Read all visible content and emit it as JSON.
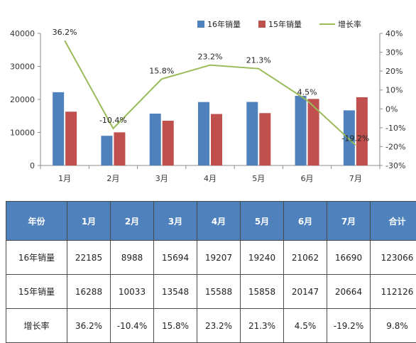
{
  "chart_data": {
    "type": "bar",
    "categories": [
      "1月",
      "2月",
      "3月",
      "4月",
      "5月",
      "6月",
      "7月"
    ],
    "series": [
      {
        "name": "16年销量",
        "type": "bar",
        "axis": "left",
        "color": "#4f81bd",
        "values": [
          22185,
          8988,
          15694,
          19207,
          19240,
          21062,
          16690
        ]
      },
      {
        "name": "15年销量",
        "type": "bar",
        "axis": "left",
        "color": "#c0504d",
        "values": [
          16288,
          10033,
          13548,
          15588,
          15858,
          20147,
          20664
        ]
      },
      {
        "name": "增长率",
        "type": "line",
        "axis": "right",
        "color": "#9bbb59",
        "values": [
          36.2,
          -10.4,
          15.8,
          23.2,
          21.3,
          4.5,
          -19.2
        ]
      }
    ],
    "line_labels": [
      "36.2%",
      "-10.4%",
      "15.8%",
      "23.2%",
      "21.3%",
      "4.5%",
      "-19.2%"
    ],
    "y_left": {
      "lim": [
        0,
        40000
      ],
      "ticks": [
        "0",
        "10000",
        "20000",
        "30000",
        "40000"
      ]
    },
    "y_right": {
      "lim": [
        -30,
        40
      ],
      "ticks": [
        "-30%",
        "-20%",
        "-10%",
        "0%",
        "10%",
        "20%",
        "30%",
        "40%"
      ]
    },
    "legend_position": "top-right",
    "grid": false
  },
  "table": {
    "headers": [
      "年份",
      "1月",
      "2月",
      "3月",
      "4月",
      "5月",
      "6月",
      "7月",
      "合计"
    ],
    "rows": [
      {
        "label": "16年销量",
        "cells": [
          "22185",
          "8988",
          "15694",
          "19207",
          "19240",
          "21062",
          "16690",
          "123066"
        ]
      },
      {
        "label": "15年销量",
        "cells": [
          "16288",
          "10033",
          "13548",
          "15588",
          "15858",
          "20147",
          "20664",
          "112126"
        ]
      },
      {
        "label": "增长率",
        "cells": [
          "36.2%",
          "-10.4%",
          "15.8%",
          "23.2%",
          "21.3%",
          "4.5%",
          "-19.2%",
          "9.8%"
        ]
      }
    ]
  }
}
